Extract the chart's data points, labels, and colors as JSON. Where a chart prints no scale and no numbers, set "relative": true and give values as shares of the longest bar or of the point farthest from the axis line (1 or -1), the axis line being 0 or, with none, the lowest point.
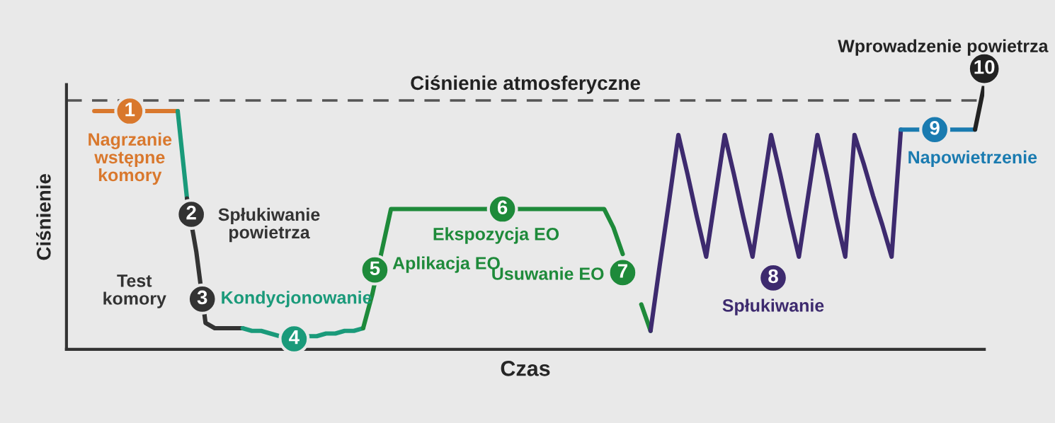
{
  "chart_data": {
    "type": "line",
    "relative": true,
    "xlabel": "Czas",
    "ylabel": "Ciśnienie",
    "marker": "none",
    "line_style": "solid",
    "categories": [
      null,
      null,
      null,
      null,
      null,
      null,
      null,
      null,
      null,
      null,
      null,
      null,
      null,
      null,
      null,
      null,
      null,
      null,
      null,
      null,
      null,
      null,
      null,
      null,
      null,
      null,
      null,
      null,
      null,
      null,
      null,
      null,
      null,
      null,
      null,
      null,
      null,
      null,
      null,
      null,
      null,
      null,
      null,
      null,
      null,
      null,
      null,
      null,
      null,
      null,
      null,
      null,
      null,
      null,
      null,
      null,
      null,
      null,
      null,
      null,
      null,
      null,
      null,
      null,
      null,
      null,
      null,
      null,
      null,
      null,
      null,
      null,
      null,
      null,
      null,
      null,
      null,
      null,
      null,
      null,
      null,
      null,
      null,
      null,
      null,
      null,
      null,
      null,
      null,
      null,
      null,
      null,
      null,
      null,
      null,
      null,
      null,
      null,
      null,
      null
    ],
    "ref_lines": [
      {
        "axis": "y",
        "value": 0.94,
        "label": "Ciśnienie atmosferyczne",
        "color": "#555555",
        "line_style": "dashed"
      }
    ],
    "series": [
      {
        "color": "#d9782d",
        "values": [
          null,
          null,
          null,
          0.9,
          0.9,
          0.9,
          0.9,
          0.9,
          0.9,
          0.9,
          0.9,
          0.9,
          0.9,
          null,
          null,
          null,
          null,
          null,
          null,
          null,
          null,
          null,
          null,
          null,
          null,
          null,
          null,
          null,
          null,
          null,
          null,
          null,
          null,
          null,
          null,
          null,
          null,
          null,
          null,
          null,
          null,
          null,
          null,
          null,
          null,
          null,
          null,
          null,
          null,
          null,
          null,
          null,
          null,
          null,
          null,
          null,
          null,
          null,
          null,
          null,
          null,
          null,
          null,
          null,
          null,
          null,
          null,
          null,
          null,
          null,
          null,
          null,
          null,
          null,
          null,
          null,
          null,
          null,
          null,
          null,
          null,
          null,
          null,
          null,
          null,
          null,
          null,
          null,
          null,
          null,
          null,
          null,
          null,
          null,
          null,
          null,
          null,
          null,
          null,
          null
        ]
      },
      {
        "color": "#1a9a7a",
        "values": [
          null,
          null,
          null,
          null,
          null,
          null,
          null,
          null,
          null,
          null,
          null,
          null,
          0.9,
          0.57,
          null,
          null,
          null,
          null,
          null,
          null,
          null,
          null,
          null,
          null,
          null,
          null,
          null,
          null,
          null,
          null,
          null,
          null,
          null,
          null,
          null,
          null,
          null,
          null,
          null,
          null,
          null,
          null,
          null,
          null,
          null,
          null,
          null,
          null,
          null,
          null,
          null,
          null,
          null,
          null,
          null,
          null,
          null,
          null,
          null,
          null,
          null,
          null,
          null,
          null,
          null,
          null,
          null,
          null,
          null,
          null,
          null,
          null,
          null,
          null,
          null,
          null,
          null,
          null,
          null,
          null,
          null,
          null,
          null,
          null,
          null,
          null,
          null,
          null,
          null,
          null,
          null,
          null,
          null,
          null,
          null,
          null,
          null,
          null,
          null,
          null
        ]
      },
      {
        "color": "#333333",
        "values": [
          null,
          null,
          null,
          null,
          null,
          null,
          null,
          null,
          null,
          null,
          null,
          null,
          null,
          0.57,
          0.37,
          0.1,
          0.08,
          0.08,
          0.08,
          0.08,
          null,
          null,
          null,
          null,
          null,
          null,
          null,
          null,
          null,
          null,
          null,
          null,
          null,
          null,
          null,
          null,
          null,
          null,
          null,
          null,
          null,
          null,
          null,
          null,
          null,
          null,
          null,
          null,
          null,
          null,
          null,
          null,
          null,
          null,
          null,
          null,
          null,
          null,
          null,
          null,
          null,
          null,
          null,
          null,
          null,
          null,
          null,
          null,
          null,
          null,
          null,
          null,
          null,
          null,
          null,
          null,
          null,
          null,
          null,
          null,
          null,
          null,
          null,
          null,
          null,
          null,
          null,
          null,
          null,
          null,
          null,
          null,
          null,
          null,
          null,
          null,
          null,
          null,
          null,
          null
        ]
      },
      {
        "color": "#1a9a7a",
        "values": [
          null,
          null,
          null,
          null,
          null,
          null,
          null,
          null,
          null,
          null,
          null,
          null,
          null,
          null,
          null,
          null,
          null,
          null,
          null,
          0.08,
          0.07,
          0.07,
          0.06,
          0.05,
          null,
          null,
          0.05,
          0.05,
          0.06,
          0.06,
          0.07,
          0.07,
          0.08,
          null,
          null,
          null,
          null,
          null,
          null,
          null,
          null,
          null,
          null,
          null,
          null,
          null,
          null,
          null,
          null,
          null,
          null,
          null,
          null,
          null,
          null,
          null,
          null,
          null,
          null,
          null,
          null,
          null,
          null,
          null,
          null,
          null,
          null,
          null,
          null,
          null,
          null,
          null,
          null,
          null,
          null,
          null,
          null,
          null,
          null,
          null,
          null,
          null,
          null,
          null,
          null,
          null,
          null,
          null,
          null,
          null,
          null,
          null,
          null,
          null,
          null,
          null,
          null,
          null,
          null,
          null
        ]
      },
      {
        "color": "#1e8a3a",
        "values": [
          null,
          null,
          null,
          null,
          null,
          null,
          null,
          null,
          null,
          null,
          null,
          null,
          null,
          null,
          null,
          null,
          null,
          null,
          null,
          null,
          null,
          null,
          null,
          null,
          null,
          null,
          null,
          null,
          null,
          null,
          null,
          null,
          0.08,
          0.21,
          0.37,
          0.53,
          0.53,
          0.53,
          0.53,
          0.53,
          0.53,
          0.53,
          0.53,
          0.53,
          0.53,
          0.53,
          0.53,
          0.53,
          0.53,
          0.53,
          0.53,
          0.53,
          0.53,
          0.53,
          0.53,
          0.53,
          0.53,
          0.53,
          0.53,
          0.46,
          0.36,
          null,
          0.17,
          0.07,
          null,
          null,
          null,
          null,
          null,
          null,
          null,
          null,
          null,
          null,
          null,
          null,
          null,
          null,
          null,
          null,
          null,
          null,
          null,
          null,
          null,
          null,
          null,
          null,
          null,
          null,
          null,
          null,
          null,
          null,
          null,
          null,
          null,
          null,
          null,
          null
        ]
      },
      {
        "color": "#3d2a6e",
        "values": [
          null,
          null,
          null,
          null,
          null,
          null,
          null,
          null,
          null,
          null,
          null,
          null,
          null,
          null,
          null,
          null,
          null,
          null,
          null,
          null,
          null,
          null,
          null,
          null,
          null,
          null,
          null,
          null,
          null,
          null,
          null,
          null,
          null,
          null,
          null,
          null,
          null,
          null,
          null,
          null,
          null,
          null,
          null,
          null,
          null,
          null,
          null,
          null,
          null,
          null,
          null,
          null,
          null,
          null,
          null,
          null,
          null,
          null,
          null,
          null,
          null,
          null,
          null,
          0.07,
          0.32,
          0.56,
          0.81,
          0.66,
          0.5,
          0.35,
          0.58,
          0.81,
          0.66,
          0.5,
          0.35,
          0.58,
          0.81,
          0.66,
          0.5,
          0.35,
          0.58,
          0.81,
          0.66,
          0.5,
          0.35,
          0.81,
          0.7,
          0.58,
          0.47,
          0.35,
          0.83,
          null,
          null,
          null,
          null,
          null,
          null,
          null,
          null,
          null
        ]
      },
      {
        "color": "#1a7bb0",
        "values": [
          null,
          null,
          null,
          null,
          null,
          null,
          null,
          null,
          null,
          null,
          null,
          null,
          null,
          null,
          null,
          null,
          null,
          null,
          null,
          null,
          null,
          null,
          null,
          null,
          null,
          null,
          null,
          null,
          null,
          null,
          null,
          null,
          null,
          null,
          null,
          null,
          null,
          null,
          null,
          null,
          null,
          null,
          null,
          null,
          null,
          null,
          null,
          null,
          null,
          null,
          null,
          null,
          null,
          null,
          null,
          null,
          null,
          null,
          null,
          null,
          null,
          null,
          null,
          null,
          null,
          null,
          null,
          null,
          null,
          null,
          null,
          null,
          null,
          null,
          null,
          null,
          null,
          null,
          null,
          null,
          null,
          null,
          null,
          null,
          null,
          null,
          null,
          null,
          null,
          null,
          0.83,
          0.83,
          0.83,
          0.83,
          0.83,
          0.83,
          0.83,
          0.83,
          0.83,
          null
        ]
      },
      {
        "color": "#222222",
        "values": [
          null,
          null,
          null,
          null,
          null,
          null,
          null,
          null,
          null,
          null,
          null,
          null,
          null,
          null,
          null,
          null,
          null,
          null,
          null,
          null,
          null,
          null,
          null,
          null,
          null,
          null,
          null,
          null,
          null,
          null,
          null,
          null,
          null,
          null,
          null,
          null,
          null,
          null,
          null,
          null,
          null,
          null,
          null,
          null,
          null,
          null,
          null,
          null,
          null,
          null,
          null,
          null,
          null,
          null,
          null,
          null,
          null,
          null,
          null,
          null,
          null,
          null,
          null,
          null,
          null,
          null,
          null,
          null,
          null,
          null,
          null,
          null,
          null,
          null,
          null,
          null,
          null,
          null,
          null,
          null,
          null,
          null,
          null,
          null,
          null,
          null,
          null,
          null,
          null,
          null,
          null,
          null,
          null,
          null,
          null,
          null,
          null,
          null,
          0.83,
          1.0
        ]
      }
    ],
    "annotations": [
      "1",
      "Nagrzanie\nwstępne\nkomory",
      "2",
      "Spłukiwanie\npowietrza",
      "3",
      "Test\nkomory",
      "4",
      "Kondycjonowanie",
      "5",
      "Aplikacja EO",
      "6",
      "Ekspozycja EO",
      "7",
      "Usuwanie EO",
      "8",
      "Spłukiwanie",
      "9",
      "Napowietrzenie",
      "10",
      "Wprowadzenie powietrza"
    ]
  }
}
